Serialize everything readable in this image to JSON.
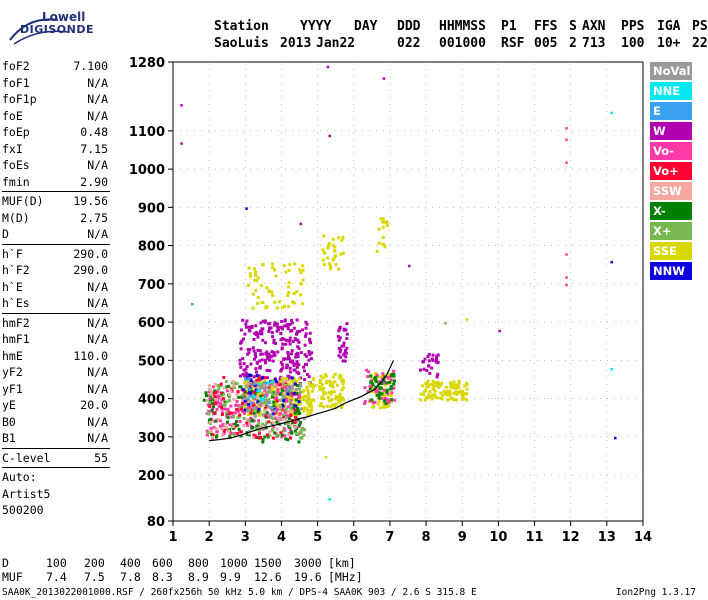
{
  "logo": {
    "line1": "Lowell",
    "line2": "DIGISONDE"
  },
  "header": {
    "labels": [
      "Station",
      "YYYY",
      "DAY",
      "DDD",
      "HHMMSS",
      "P1",
      "FFS",
      "S",
      "AXN",
      "PPS",
      "IGA",
      "PS"
    ],
    "values": [
      "SaoLuis",
      "2013",
      "Jan22",
      "022",
      "001000",
      "RSF",
      "005",
      "2",
      "713",
      "100",
      "10+",
      "22"
    ]
  },
  "params": {
    "group1": [
      {
        "k": "foF2",
        "v": "7.100"
      },
      {
        "k": "foF1",
        "v": "N/A"
      },
      {
        "k": "foF1p",
        "v": "N/A"
      },
      {
        "k": "foE",
        "v": "N/A"
      },
      {
        "k": "foEp",
        "v": "0.48"
      },
      {
        "k": "fxI",
        "v": "7.15"
      },
      {
        "k": "foEs",
        "v": "N/A"
      },
      {
        "k": "fmin",
        "v": "2.90"
      }
    ],
    "group2": [
      {
        "k": "MUF(D)",
        "v": "19.56"
      },
      {
        "k": "M(D)",
        "v": "2.75"
      },
      {
        "k": "D",
        "v": "N/A"
      }
    ],
    "group3": [
      {
        "k": "h`F",
        "v": "290.0"
      },
      {
        "k": "h`F2",
        "v": "290.0"
      },
      {
        "k": "h`E",
        "v": "N/A"
      },
      {
        "k": "h`Es",
        "v": "N/A"
      }
    ],
    "group4": [
      {
        "k": "hmF2",
        "v": "N/A"
      },
      {
        "k": "hmF1",
        "v": "N/A"
      },
      {
        "k": "hmE",
        "v": "110.0"
      },
      {
        "k": "yF2",
        "v": "N/A"
      },
      {
        "k": "yF1",
        "v": "N/A"
      },
      {
        "k": "yE",
        "v": "20.0"
      },
      {
        "k": "B0",
        "v": "N/A"
      },
      {
        "k": "B1",
        "v": "N/A"
      }
    ],
    "clevel": {
      "k": "C-level",
      "v": "55"
    },
    "auto": [
      "Auto:",
      "Artist5",
      "500200"
    ]
  },
  "legend": [
    {
      "label": "NoVal",
      "color": "#9a9a9a"
    },
    {
      "label": "NNE",
      "color": "#00e8f0"
    },
    {
      "label": "E",
      "color": "#3aa0f0"
    },
    {
      "label": "W",
      "color": "#b000b0"
    },
    {
      "label": "Vo-",
      "color": "#ff3aa8"
    },
    {
      "label": "Vo+",
      "color": "#ff0030"
    },
    {
      "label": "SSW",
      "color": "#f4a8a0"
    },
    {
      "label": "X-",
      "color": "#008000"
    },
    {
      "label": "X+",
      "color": "#78b850"
    },
    {
      "label": "SSE",
      "color": "#d8d800"
    },
    {
      "label": "NNW",
      "color": "#1000e0"
    }
  ],
  "footer": {
    "d_label": "D",
    "d_values": [
      "100",
      "200",
      "400",
      "600",
      "800",
      "1000",
      "1500",
      "3000"
    ],
    "d_unit": "[km]",
    "muf_label": "MUF",
    "muf_values": [
      "7.4",
      "7.5",
      "7.8",
      "8.3",
      "8.9",
      "9.9",
      "12.6",
      "19.6"
    ],
    "muf_unit": "[MHz]",
    "info": "SAA0K_2013022001000.RSF / 260fx256h 50 kHz 5.0 km / DPS-4 SAA0K 903 / 2.6 S 315.8 E",
    "version": "Ion2Png 1.3.17"
  },
  "chart_data": {
    "type": "scatter",
    "xlim": [
      1,
      14
    ],
    "ylim": [
      80,
      1280
    ],
    "x_ticks": [
      1,
      2,
      3,
      4,
      5,
      6,
      7,
      8,
      9,
      10,
      11,
      12,
      13,
      14
    ],
    "y_ticks": [
      80,
      200,
      300,
      400,
      500,
      600,
      700,
      800,
      900,
      1000,
      1100,
      1280
    ],
    "grid": "dotted",
    "legend_position": "right",
    "clusters": [
      {
        "name": "W",
        "x": [
          2.8,
          4.8
        ],
        "y": [
          440,
          610
        ],
        "n": 260
      },
      {
        "name": "W",
        "x": [
          5.5,
          5.8
        ],
        "y": [
          500,
          600
        ],
        "n": 30
      },
      {
        "name": "W",
        "x": [
          7.8,
          8.3
        ],
        "y": [
          460,
          520
        ],
        "n": 25
      },
      {
        "name": "SSE",
        "x": [
          2.9,
          4.9
        ],
        "y": [
          360,
          460
        ],
        "n": 230
      },
      {
        "name": "SSE",
        "x": [
          5.0,
          5.7
        ],
        "y": [
          380,
          470
        ],
        "n": 80
      },
      {
        "name": "SSE",
        "x": [
          6.4,
          7.0
        ],
        "y": [
          380,
          470
        ],
        "n": 70
      },
      {
        "name": "SSE",
        "x": [
          7.8,
          9.1
        ],
        "y": [
          400,
          450
        ],
        "n": 110
      },
      {
        "name": "SSE",
        "x": [
          3.0,
          4.6
        ],
        "y": [
          640,
          760
        ],
        "n": 60
      },
      {
        "name": "SSE",
        "x": [
          5.1,
          5.7
        ],
        "y": [
          740,
          830
        ],
        "n": 30
      },
      {
        "name": "SSE",
        "x": [
          6.6,
          6.9
        ],
        "y": [
          780,
          880
        ],
        "n": 15
      },
      {
        "name": "Vo-",
        "x": [
          1.9,
          4.5
        ],
        "y": [
          300,
          440
        ],
        "n": 200
      },
      {
        "name": "Vo-",
        "x": [
          6.2,
          7.1
        ],
        "y": [
          390,
          480
        ],
        "n": 40
      },
      {
        "name": "X-",
        "x": [
          1.8,
          4.5
        ],
        "y": [
          290,
          440
        ],
        "n": 130
      },
      {
        "name": "X-",
        "x": [
          6.4,
          7.1
        ],
        "y": [
          390,
          470
        ],
        "n": 40
      },
      {
        "name": "X+",
        "x": [
          1.9,
          4.6
        ],
        "y": [
          300,
          450
        ],
        "n": 100
      },
      {
        "name": "Vo+",
        "x": [
          1.9,
          4.4
        ],
        "y": [
          300,
          460
        ],
        "n": 70
      },
      {
        "name": "SSW",
        "x": [
          1.9,
          4.4
        ],
        "y": [
          300,
          450
        ],
        "n": 60
      },
      {
        "name": "NNW",
        "x": [
          2.8,
          4.5
        ],
        "y": [
          360,
          470
        ],
        "n": 30
      },
      {
        "name": "E",
        "x": [
          2.9,
          4.2
        ],
        "y": [
          380,
          460
        ],
        "n": 14
      },
      {
        "name": "NNE",
        "x": [
          3.0,
          4.0
        ],
        "y": [
          400,
          450
        ],
        "n": 8
      },
      {
        "name": "NoVal",
        "x": [
          2.9,
          4.6
        ],
        "y": [
          330,
          450
        ],
        "n": 40
      }
    ],
    "sparse_points": [
      {
        "name": "W",
        "x": 1.2,
        "y": 1170
      },
      {
        "name": "W",
        "x": 1.2,
        "y": 1070
      },
      {
        "name": "W",
        "x": 5.25,
        "y": 1270
      },
      {
        "name": "W",
        "x": 5.3,
        "y": 1090
      },
      {
        "name": "W",
        "x": 6.8,
        "y": 1240
      },
      {
        "name": "W",
        "x": 4.5,
        "y": 860
      },
      {
        "name": "W",
        "x": 7.5,
        "y": 750
      },
      {
        "name": "W",
        "x": 10.0,
        "y": 580
      },
      {
        "name": "Vo-",
        "x": 11.85,
        "y": 1110
      },
      {
        "name": "Vo-",
        "x": 11.85,
        "y": 1080
      },
      {
        "name": "Vo-",
        "x": 11.85,
        "y": 1020
      },
      {
        "name": "Vo-",
        "x": 11.85,
        "y": 780
      },
      {
        "name": "Vo-",
        "x": 11.85,
        "y": 720
      },
      {
        "name": "Vo-",
        "x": 11.85,
        "y": 700
      },
      {
        "name": "NNE",
        "x": 5.3,
        "y": 140
      },
      {
        "name": "NNE",
        "x": 13.1,
        "y": 1150
      },
      {
        "name": "E",
        "x": 1.5,
        "y": 650
      },
      {
        "name": "SSE",
        "x": 5.2,
        "y": 250
      },
      {
        "name": "NNW",
        "x": 13.1,
        "y": 760
      },
      {
        "name": "NNW",
        "x": 13.2,
        "y": 300
      },
      {
        "name": "NNW",
        "x": 3.0,
        "y": 900
      },
      {
        "name": "X+",
        "x": 8.5,
        "y": 600
      },
      {
        "name": "NNE",
        "x": 13.1,
        "y": 480
      },
      {
        "name": "SSE",
        "x": 9.1,
        "y": 610
      }
    ],
    "trace": {
      "name": "trace",
      "x": [
        2.0,
        2.3,
        2.6,
        2.9,
        3.1,
        3.3,
        3.5,
        3.8,
        4.0,
        4.3,
        4.5,
        4.7,
        4.9,
        5.2,
        5.5,
        5.8,
        6.2,
        6.6,
        6.9,
        7.1
      ],
      "y": [
        290,
        293,
        297,
        305,
        312,
        318,
        324,
        330,
        335,
        342,
        348,
        352,
        358,
        366,
        375,
        390,
        405,
        425,
        460,
        500
      ]
    }
  }
}
